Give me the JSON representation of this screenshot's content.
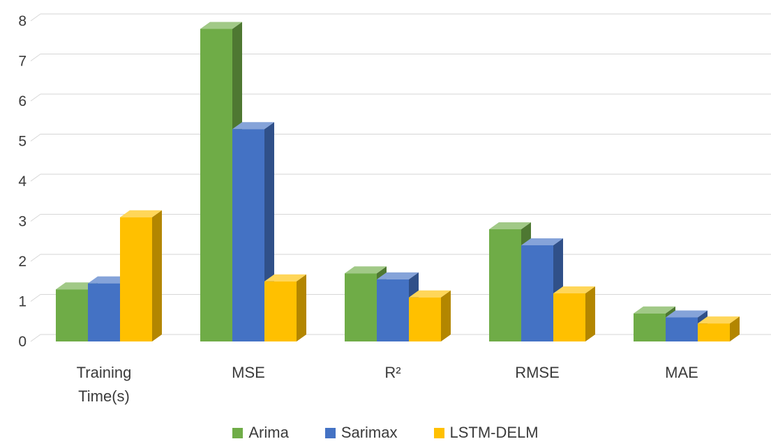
{
  "chart_data": {
    "type": "bar",
    "style": "3d-clustered-column",
    "title": "",
    "xlabel": "",
    "ylabel": "",
    "categories": [
      "Training Time(s)",
      "MSE",
      "R²",
      "RMSE",
      "MAE"
    ],
    "series": [
      {
        "name": "Arima",
        "color": "#6FAC47",
        "values": [
          1.3,
          7.8,
          1.7,
          2.8,
          0.7
        ]
      },
      {
        "name": "Sarimax",
        "color": "#4472C4",
        "values": [
          1.45,
          5.3,
          1.55,
          2.4,
          0.6
        ]
      },
      {
        "name": "LSTM-DELM",
        "color": "#FFC000",
        "values": [
          3.1,
          1.5,
          1.1,
          1.2,
          0.45
        ]
      }
    ],
    "ylim": [
      0,
      8
    ],
    "yticks": [
      0,
      1,
      2,
      3,
      4,
      5,
      6,
      7,
      8
    ],
    "grid": true,
    "gridline_color": "#D6D6D6",
    "text_color": "#3b3b3b",
    "legend_position": "bottom"
  }
}
